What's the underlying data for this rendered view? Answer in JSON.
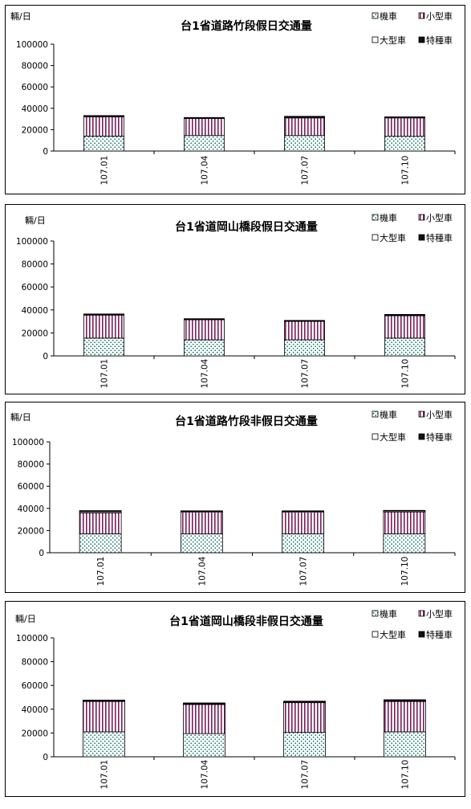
{
  "legend": {
    "moto": "機車",
    "small": "小型車",
    "large": "大型車",
    "special": "特種車"
  },
  "chart_data": [
    {
      "type": "bar",
      "stacked": true,
      "title": "台1省道路竹段假日交通量",
      "ylabel": "輛/日",
      "ylim": [
        0,
        100000
      ],
      "yticks": [
        "0",
        "20000",
        "40000",
        "60000",
        "80000",
        "100000"
      ],
      "categories": [
        "107.01",
        "107.04",
        "107.07",
        "107.10"
      ],
      "series": [
        {
          "name": "機車",
          "values": [
            14000,
            14500,
            14500,
            13800
          ]
        },
        {
          "name": "小型車",
          "values": [
            18000,
            16000,
            16500,
            17200
          ]
        },
        {
          "name": "大型車",
          "values": [
            600,
            500,
            600,
            500
          ]
        },
        {
          "name": "特種車",
          "values": [
            600,
            400,
            900,
            500
          ]
        }
      ],
      "legend_position": "top-right"
    },
    {
      "type": "bar",
      "stacked": true,
      "title": "台1省道岡山橋段假日交通量",
      "ylabel": "輛/日",
      "ylim": [
        0,
        100000
      ],
      "yticks": [
        "0",
        "20000",
        "40000",
        "60000",
        "80000",
        "100000"
      ],
      "categories": [
        "107.01",
        "107.04",
        "107.07",
        "107.10"
      ],
      "series": [
        {
          "name": "機車",
          "values": [
            15500,
            14000,
            14000,
            15500
          ]
        },
        {
          "name": "小型車",
          "values": [
            20000,
            17500,
            16000,
            19500
          ]
        },
        {
          "name": "大型車",
          "values": [
            500,
            500,
            500,
            500
          ]
        },
        {
          "name": "特種車",
          "values": [
            500,
            400,
            400,
            600
          ]
        }
      ],
      "legend_position": "top-right"
    },
    {
      "type": "bar",
      "stacked": true,
      "title": "台1省道路竹段非假日交通量",
      "ylabel": "輛/日",
      "ylim": [
        0,
        100000
      ],
      "yticks": [
        "0",
        "20000",
        "40000",
        "60000",
        "80000",
        "100000"
      ],
      "categories": [
        "107.01",
        "107.04",
        "107.07",
        "107.10"
      ],
      "series": [
        {
          "name": "機車",
          "values": [
            17000,
            17000,
            17000,
            17000
          ]
        },
        {
          "name": "小型車",
          "values": [
            19000,
            19500,
            19500,
            19800
          ]
        },
        {
          "name": "大型車",
          "values": [
            1000,
            800,
            800,
            800
          ]
        },
        {
          "name": "特種車",
          "values": [
            1000,
            500,
            500,
            600
          ]
        }
      ],
      "legend_position": "top-right"
    },
    {
      "type": "bar",
      "stacked": true,
      "title": "台1省道岡山橋段非假日交通量",
      "ylabel": "輛/日",
      "ylim": [
        0,
        100000
      ],
      "yticks": [
        "0",
        "20000",
        "40000",
        "60000",
        "80000",
        "100000"
      ],
      "categories": [
        "107.01",
        "107.04",
        "107.07",
        "107.10"
      ],
      "series": [
        {
          "name": "機車",
          "values": [
            21000,
            19500,
            20500,
            21000
          ]
        },
        {
          "name": "小型車",
          "values": [
            25500,
            24500,
            25000,
            25500
          ]
        },
        {
          "name": "大型車",
          "values": [
            600,
            600,
            600,
            600
          ]
        },
        {
          "name": "特種車",
          "values": [
            600,
            700,
            700,
            900
          ]
        }
      ],
      "legend_position": "top-right"
    }
  ]
}
